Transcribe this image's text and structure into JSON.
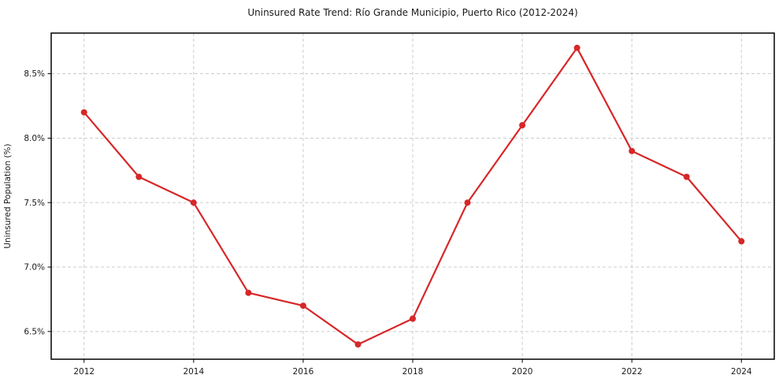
{
  "chart_data": {
    "type": "line",
    "title": "Uninsured Rate Trend: Río Grande Municipio, Puerto Rico (2012-2024)",
    "xlabel": "",
    "ylabel": "Uninsured Population (%)",
    "x": [
      2012,
      2013,
      2014,
      2015,
      2016,
      2017,
      2018,
      2019,
      2020,
      2021,
      2022,
      2023,
      2024
    ],
    "values": [
      8.2,
      7.7,
      7.5,
      6.8,
      6.7,
      6.4,
      6.6,
      7.5,
      8.1,
      8.7,
      7.9,
      7.7,
      7.2
    ],
    "xticks": [
      2012,
      2014,
      2016,
      2018,
      2020,
      2022,
      2024
    ],
    "xtick_labels": [
      "2012",
      "2014",
      "2016",
      "2018",
      "2020",
      "2022",
      "2024"
    ],
    "yticks": [
      6.5,
      7.0,
      7.5,
      8.0,
      8.5
    ],
    "ytick_labels": [
      "6.5%",
      "7.0%",
      "7.5%",
      "8.0%",
      "8.5%"
    ],
    "xlim": [
      2011.4,
      2024.6
    ],
    "ylim": [
      6.285,
      8.815
    ],
    "grid": true,
    "legend": "none",
    "line_color": "#d62728",
    "marker": "circle",
    "marker_color": "#d62728",
    "grid_color": "#cccccc",
    "background": "#ffffff"
  }
}
